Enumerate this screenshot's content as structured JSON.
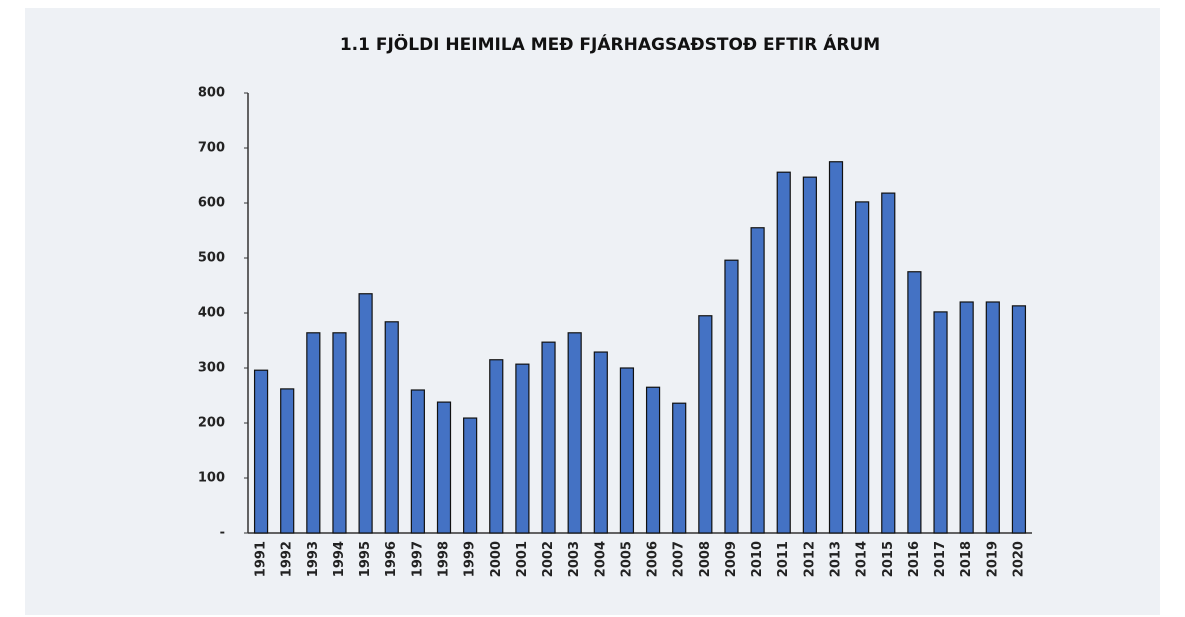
{
  "chart_data": {
    "type": "bar",
    "title": "1.1 FJÖLDI HEIMILA MEÐ FJÁRHAGSAÐSTOÐ EFTIR ÁRUM",
    "categories": [
      "1991",
      "1992",
      "1993",
      "1994",
      "1995",
      "1996",
      "1997",
      "1998",
      "1999",
      "2000",
      "2001",
      "2002",
      "2003",
      "2004",
      "2005",
      "2006",
      "2007",
      "2008",
      "2009",
      "2010",
      "2011",
      "2012",
      "2013",
      "2014",
      "2015",
      "2016",
      "2017",
      "2018",
      "2019",
      "2020"
    ],
    "values": [
      296,
      262,
      364,
      364,
      435,
      384,
      260,
      238,
      209,
      315,
      307,
      347,
      364,
      329,
      300,
      265,
      236,
      395,
      496,
      555,
      656,
      647,
      675,
      602,
      618,
      475,
      402,
      420,
      420,
      413
    ],
    "color": "#4472c4",
    "ylim": [
      0,
      800
    ],
    "yticks": [
      {
        "value": 0,
        "label": "-"
      },
      100,
      200,
      300,
      400,
      500,
      600,
      700,
      800
    ],
    "grid": false
  }
}
